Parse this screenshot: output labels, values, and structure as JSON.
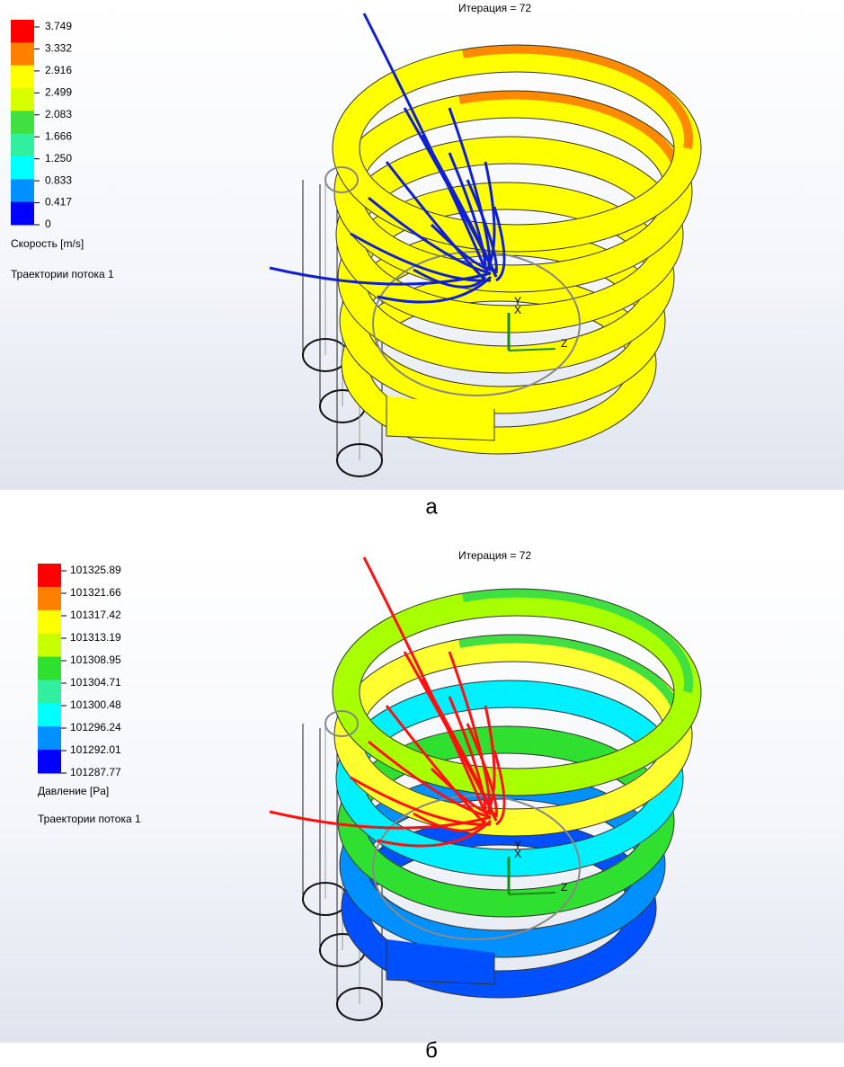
{
  "panels": [
    {
      "iteration": "Итерация = 72",
      "legend": {
        "labels": [
          "3.749",
          "3.332",
          "2.916",
          "2.499",
          "2.083",
          "1.666",
          "1.250",
          "0.833",
          "0.417",
          "0"
        ],
        "colors": [
          "#ff0000",
          "#ff8000",
          "#ffff00",
          "#d8ff00",
          "#40e040",
          "#30f0a0",
          "#00ffff",
          "#0090ff",
          "#0000ff"
        ]
      },
      "quantity": "Скорость [m/s]",
      "trajectories": "Траектории потока 1",
      "axes": {
        "x": "X",
        "y": "Y",
        "z": "Z"
      },
      "caption": "а"
    },
    {
      "iteration": "Итерация = 72",
      "legend": {
        "labels": [
          "101325.89",
          "101321.66",
          "101317.42",
          "101313.19",
          "101308.95",
          "101304.71",
          "101300.48",
          "101296.24",
          "101292.01",
          "101287.77"
        ],
        "colors": [
          "#ff0000",
          "#ff8000",
          "#ffff00",
          "#c8ff00",
          "#30e030",
          "#30f0a0",
          "#00ffff",
          "#0090ff",
          "#0000ff"
        ]
      },
      "quantity": "Давление [Pa]",
      "trajectories": "Траектории потока 1",
      "axes": {
        "x": "X",
        "y": "Y",
        "z": "Z"
      },
      "caption": "б"
    }
  ]
}
